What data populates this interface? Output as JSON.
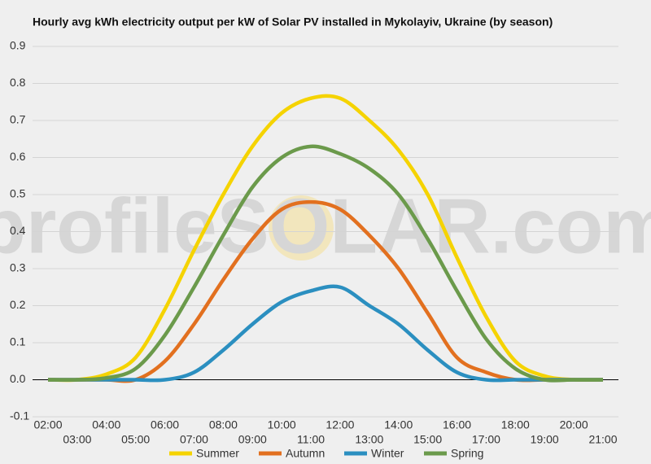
{
  "chart_data": {
    "type": "line",
    "title": "Hourly avg kWh electricity output per kW of Solar PV installed in Mykolayiv, Ukraine (by season)",
    "watermark": "profileSOLAR.com",
    "categories": [
      "02:00",
      "03:00",
      "04:00",
      "05:00",
      "06:00",
      "07:00",
      "08:00",
      "09:00",
      "10:00",
      "11:00",
      "12:00",
      "13:00",
      "14:00",
      "15:00",
      "16:00",
      "17:00",
      "18:00",
      "19:00",
      "20:00",
      "21:00"
    ],
    "series": [
      {
        "name": "Summer",
        "color": "#f5d300",
        "values": [
          0,
          0,
          0.015,
          0.06,
          0.19,
          0.35,
          0.5,
          0.63,
          0.72,
          0.76,
          0.76,
          0.7,
          0.62,
          0.5,
          0.33,
          0.17,
          0.05,
          0.01,
          0,
          0
        ]
      },
      {
        "name": "Autumn",
        "color": "#e2701f",
        "values": [
          0,
          0,
          0,
          0,
          0.05,
          0.15,
          0.27,
          0.38,
          0.46,
          0.48,
          0.46,
          0.39,
          0.3,
          0.18,
          0.06,
          0.02,
          0,
          0,
          0,
          0
        ]
      },
      {
        "name": "Winter",
        "color": "#2b8fc0",
        "values": [
          0,
          0,
          0,
          0,
          0,
          0.02,
          0.08,
          0.15,
          0.21,
          0.24,
          0.25,
          0.2,
          0.15,
          0.08,
          0.02,
          0,
          0,
          0,
          0,
          0
        ]
      },
      {
        "name": "Spring",
        "color": "#6b9a4b",
        "values": [
          0,
          0,
          0.005,
          0.03,
          0.12,
          0.25,
          0.39,
          0.52,
          0.6,
          0.63,
          0.61,
          0.57,
          0.5,
          0.38,
          0.24,
          0.11,
          0.03,
          0,
          0,
          0
        ]
      }
    ],
    "ylim": [
      -0.1,
      0.9
    ],
    "yticks": [
      -0.1,
      {
        "value": 0,
        "label": "0.0"
      },
      0.1,
      0.2,
      0.3,
      0.4,
      0.5,
      0.6,
      0.7,
      0.8,
      0.9
    ],
    "grid": true,
    "legend": "bottom"
  }
}
